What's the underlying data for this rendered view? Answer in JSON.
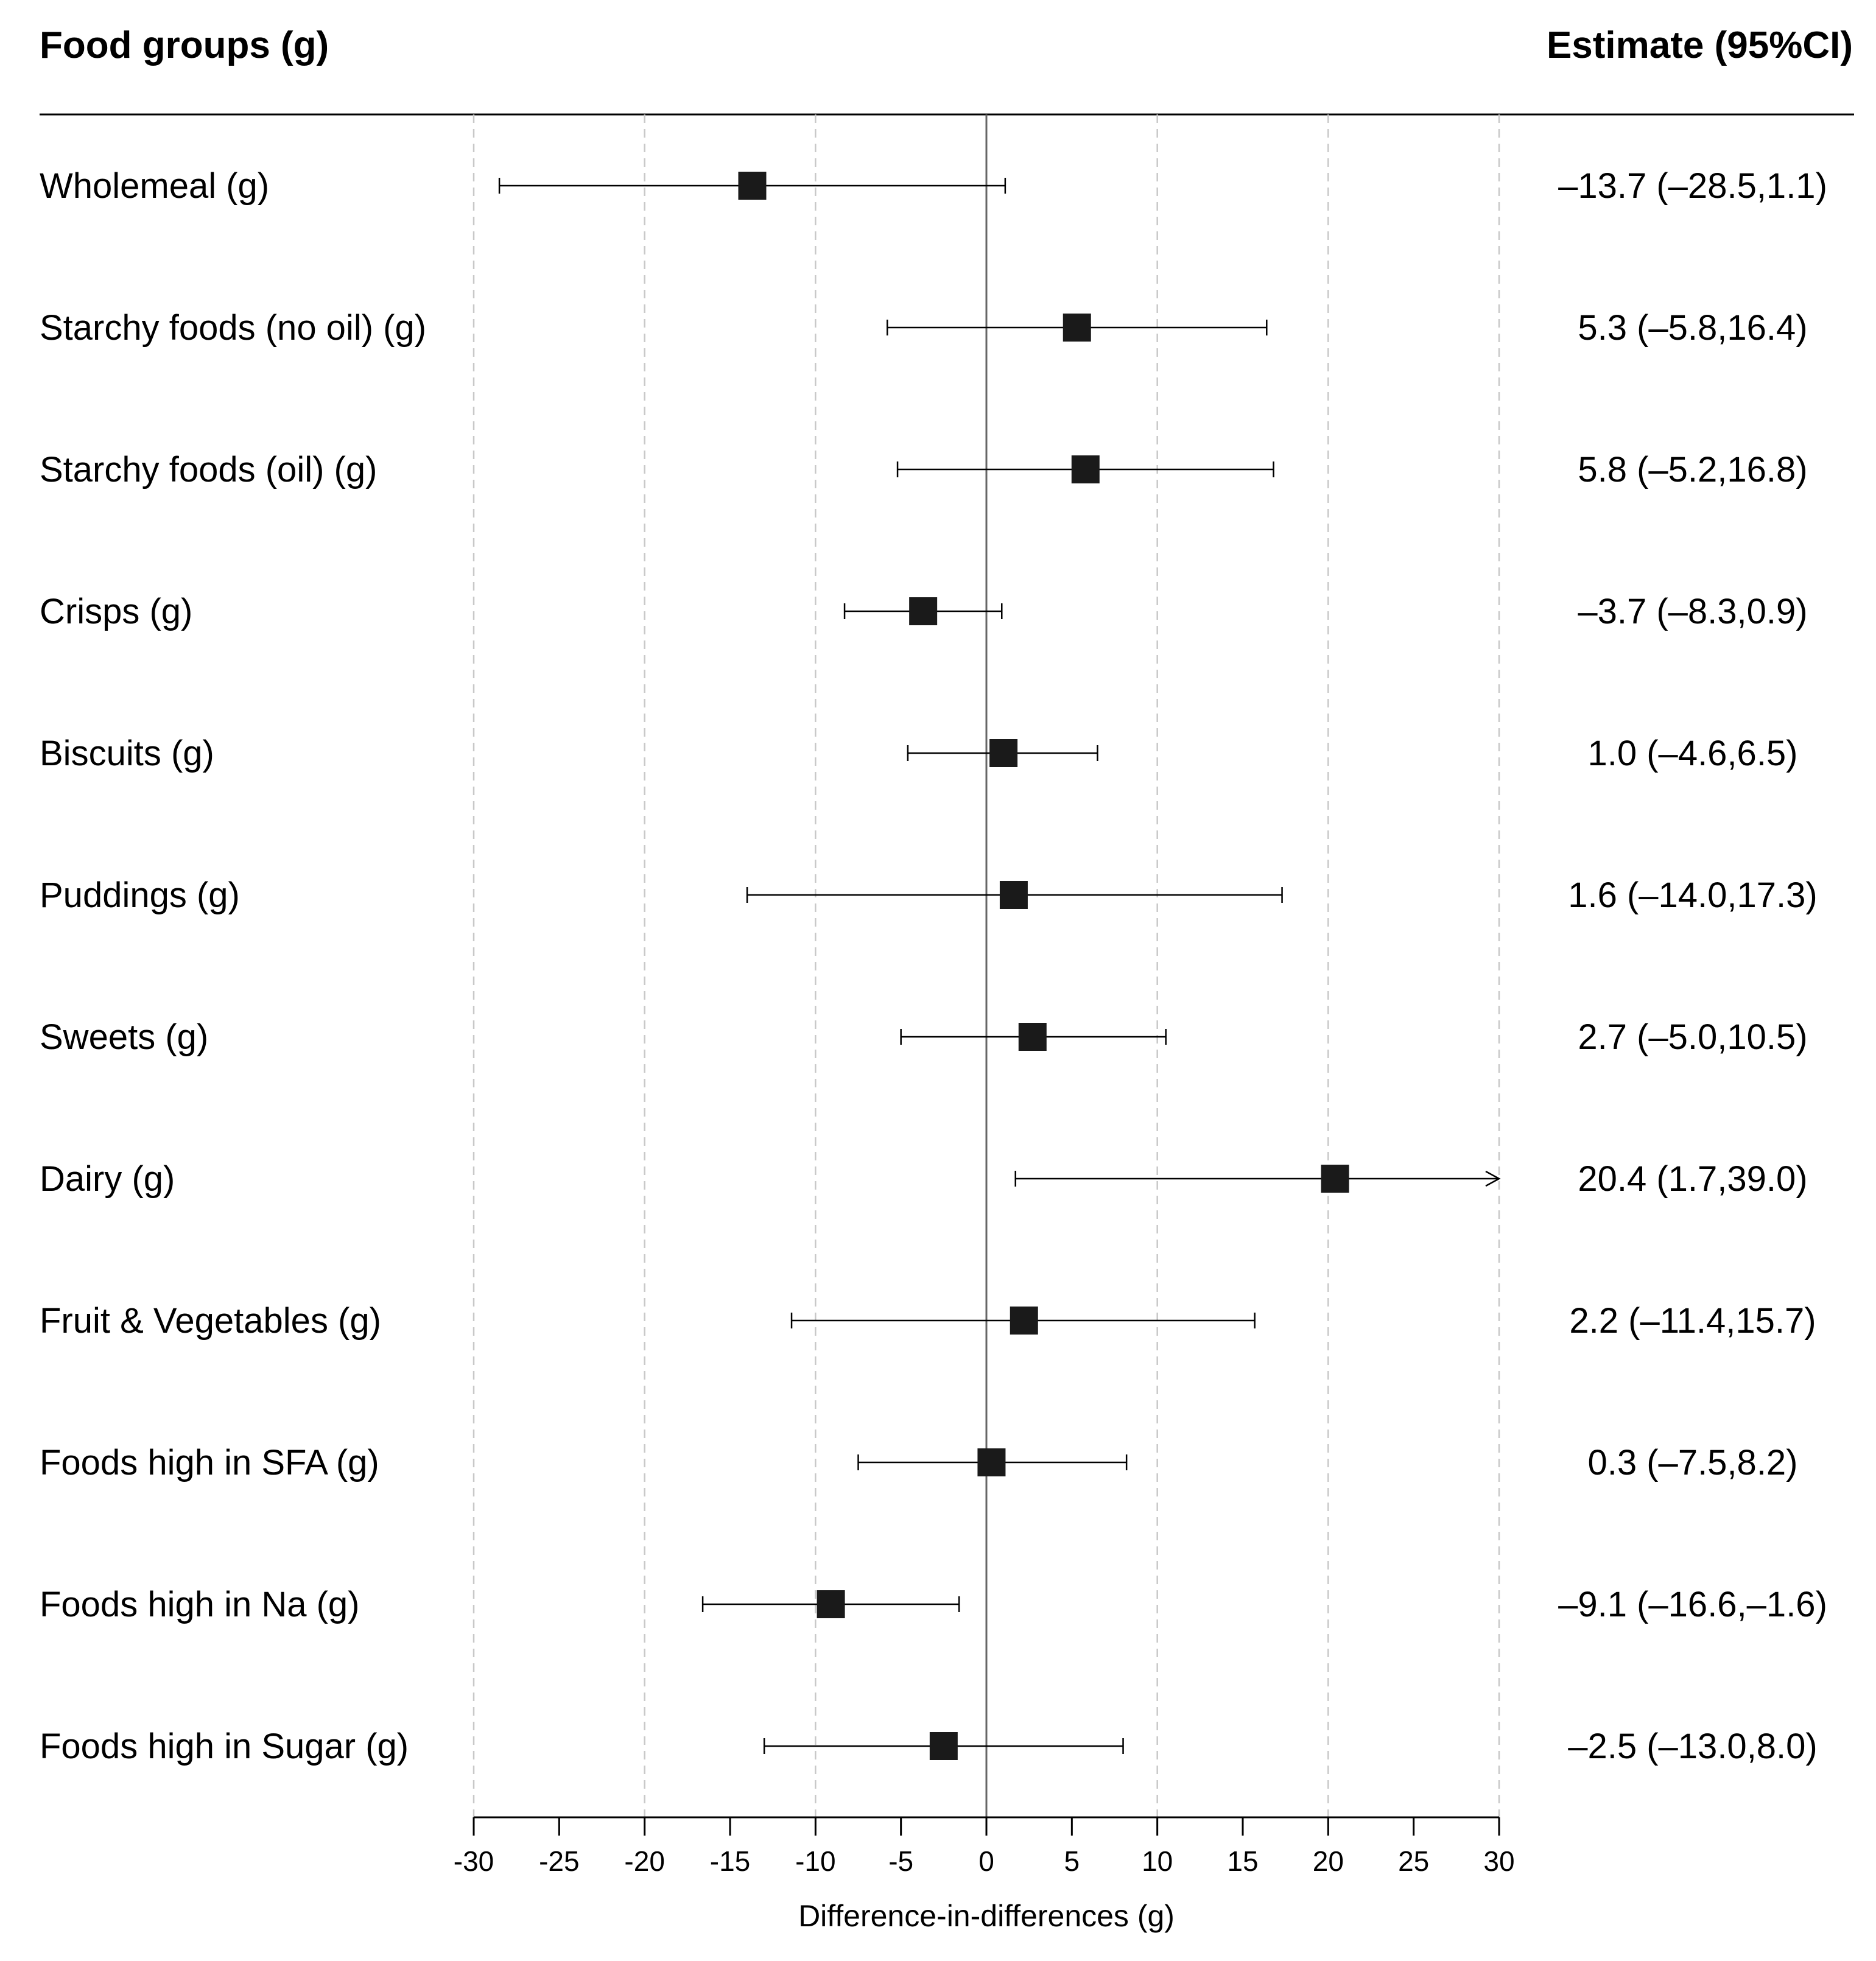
{
  "chart_data": {
    "type": "forest",
    "left_header": "Food groups (g)",
    "right_header": "Estimate (95%CI)",
    "xlabel": "Difference-in-differences (g)",
    "xlim": [
      -30,
      30
    ],
    "xticks": [
      -30,
      -25,
      -20,
      -15,
      -10,
      -5,
      0,
      5,
      10,
      15,
      20,
      25,
      30
    ],
    "gridlines": [
      -30,
      -20,
      -10,
      10,
      20,
      30
    ],
    "rows": [
      {
        "label": "Wholemeal (g)",
        "estimate": -13.7,
        "lower": -28.5,
        "upper": 1.1,
        "text": "–13.7 (–28.5,1.1)"
      },
      {
        "label": "Starchy foods (no oil) (g)",
        "estimate": 5.3,
        "lower": -5.8,
        "upper": 16.4,
        "text": "5.3 (–5.8,16.4)"
      },
      {
        "label": "Starchy foods (oil) (g)",
        "estimate": 5.8,
        "lower": -5.2,
        "upper": 16.8,
        "text": "5.8 (–5.2,16.8)"
      },
      {
        "label": "Crisps (g)",
        "estimate": -3.7,
        "lower": -8.3,
        "upper": 0.9,
        "text": "–3.7 (–8.3,0.9)"
      },
      {
        "label": "Biscuits (g)",
        "estimate": 1.0,
        "lower": -4.6,
        "upper": 6.5,
        "text": "1.0 (–4.6,6.5)"
      },
      {
        "label": "Puddings (g)",
        "estimate": 1.6,
        "lower": -14.0,
        "upper": 17.3,
        "text": "1.6 (–14.0,17.3)"
      },
      {
        "label": "Sweets (g)",
        "estimate": 2.7,
        "lower": -5.0,
        "upper": 10.5,
        "text": "2.7 (–5.0,10.5)"
      },
      {
        "label": "Dairy (g)",
        "estimate": 20.4,
        "lower": 1.7,
        "upper": 39.0,
        "text": "20.4 (1.7,39.0)"
      },
      {
        "label": "Fruit & Vegetables (g)",
        "estimate": 2.2,
        "lower": -11.4,
        "upper": 15.7,
        "text": "2.2 (–11.4,15.7)"
      },
      {
        "label": "Foods high in SFA (g)",
        "estimate": 0.3,
        "lower": -7.5,
        "upper": 8.2,
        "text": "0.3 (–7.5,8.2)"
      },
      {
        "label": "Foods high in Na (g)",
        "estimate": -9.1,
        "lower": -16.6,
        "upper": -1.6,
        "text": "–9.1 (–16.6,–1.6)"
      },
      {
        "label": "Foods high in Sugar (g)",
        "estimate": -2.5,
        "lower": -13.0,
        "upper": 8.0,
        "text": "–2.5 (–13.0,8.0)"
      }
    ]
  }
}
